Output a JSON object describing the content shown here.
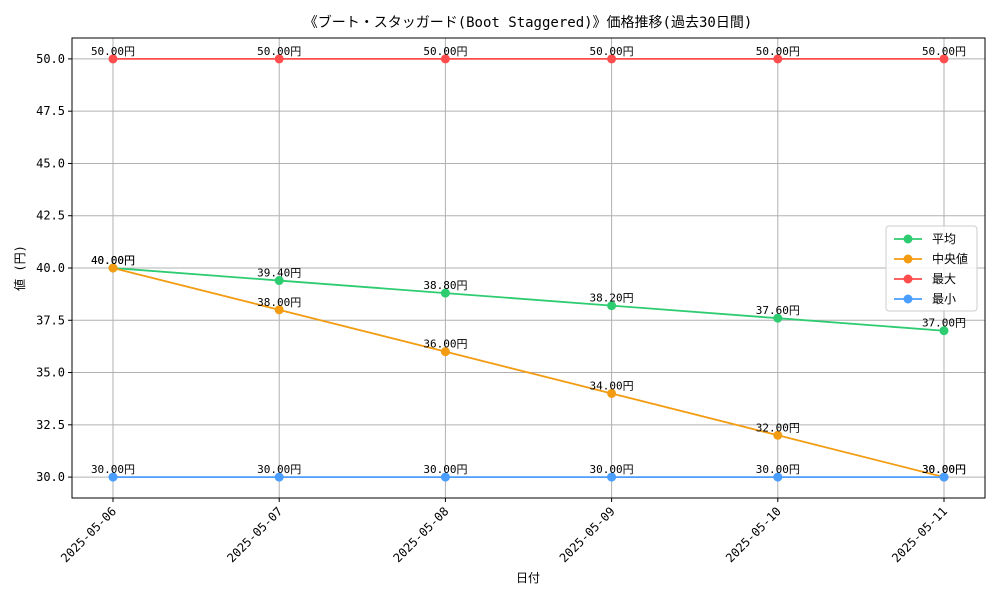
{
  "chart_data": {
    "type": "line",
    "title": "《ブート・スタッガード(Boot Staggered)》価格推移(過去30日間)",
    "xlabel": "日付",
    "ylabel": "値 (円)",
    "categories": [
      "2025-05-06",
      "2025-05-07",
      "2025-05-08",
      "2025-05-09",
      "2025-05-10",
      "2025-05-11"
    ],
    "ylim": [
      29,
      51
    ],
    "yticks": [
      "30.0",
      "32.5",
      "35.0",
      "37.5",
      "40.0",
      "42.5",
      "45.0",
      "47.5",
      "50.0"
    ],
    "grid": true,
    "legend_position": "center-right",
    "series": [
      {
        "name": "平均",
        "color": "#2ecc71",
        "values": [
          40.0,
          39.4,
          38.8,
          38.2,
          37.6,
          37.0
        ],
        "labels": [
          "40.00円",
          "39.40円",
          "38.80円",
          "38.20円",
          "37.60円",
          "37.00円"
        ]
      },
      {
        "name": "中央値",
        "color": "#f39c12",
        "values": [
          40.0,
          38.0,
          36.0,
          34.0,
          32.0,
          30.0
        ],
        "labels": [
          "40.00円",
          "38.00円",
          "36.00円",
          "34.00円",
          "32.00円",
          "30.00円"
        ]
      },
      {
        "name": "最大",
        "color": "#ff4d4d",
        "values": [
          50.0,
          50.0,
          50.0,
          50.0,
          50.0,
          50.0
        ],
        "labels": [
          "50.00円",
          "50.00円",
          "50.00円",
          "50.00円",
          "50.00円",
          "50.00円"
        ]
      },
      {
        "name": "最小",
        "color": "#4a9eff",
        "values": [
          30.0,
          30.0,
          30.0,
          30.0,
          30.0,
          30.0
        ],
        "labels": [
          "30.00円",
          "30.00円",
          "30.00円",
          "30.00円",
          "30.00円",
          "30.00円"
        ]
      }
    ]
  }
}
